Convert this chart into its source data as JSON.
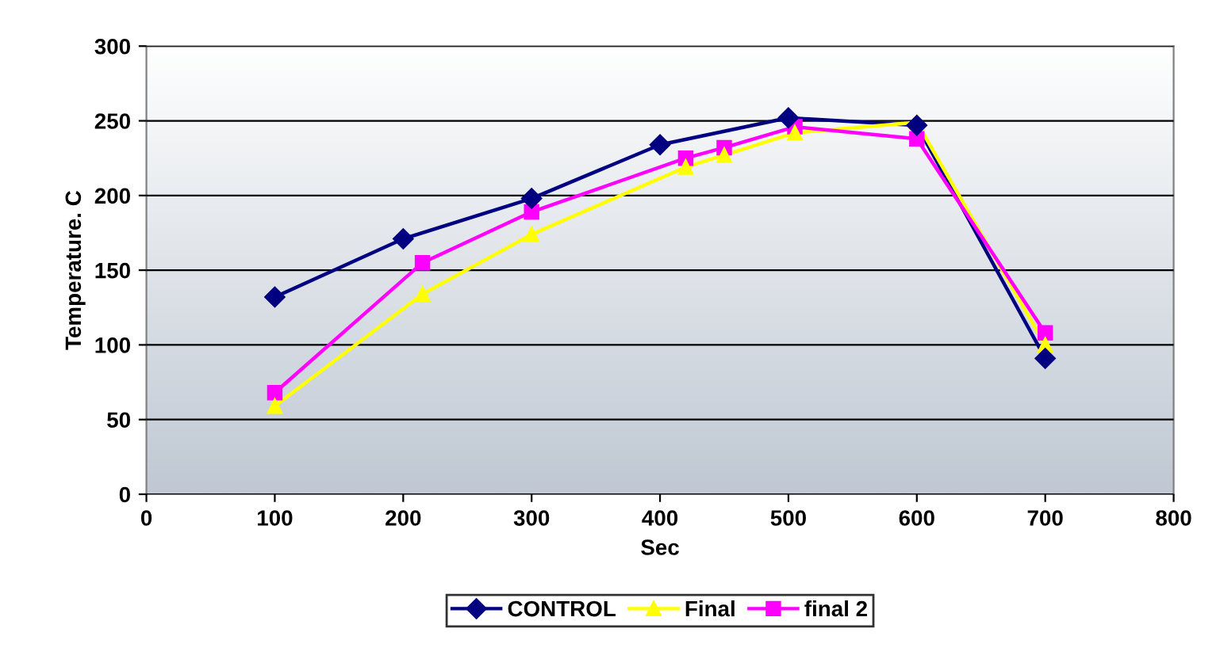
{
  "chart_data": {
    "type": "line",
    "xlabel": "Sec",
    "ylabel": "Temperature. C",
    "xlim": [
      0,
      800
    ],
    "xticks": [
      0,
      100,
      200,
      300,
      400,
      500,
      600,
      700,
      800
    ],
    "ylim": [
      0,
      300
    ],
    "yticks": [
      0,
      50,
      100,
      150,
      200,
      250,
      300
    ],
    "grid": "y",
    "legend": "bottom",
    "line_style": "solid",
    "series": [
      {
        "name": "CONTROL",
        "color": "#000080",
        "marker": "diamond",
        "x": [
          100,
          200,
          300,
          400,
          500,
          600,
          700
        ],
        "values": [
          132,
          171,
          198,
          234,
          252,
          247,
          91
        ]
      },
      {
        "name": "Final",
        "color": "#ffff00",
        "marker": "triangle",
        "x": [
          100,
          215,
          300,
          420,
          450,
          505,
          600,
          700
        ],
        "values": [
          59,
          134,
          174,
          219,
          227,
          242,
          249,
          100
        ]
      },
      {
        "name": "final 2",
        "color": "#ff00ff",
        "marker": "square",
        "x": [
          100,
          215,
          300,
          420,
          450,
          505,
          600,
          700
        ],
        "values": [
          68,
          155,
          189,
          225,
          232,
          246,
          238,
          108
        ]
      }
    ]
  }
}
